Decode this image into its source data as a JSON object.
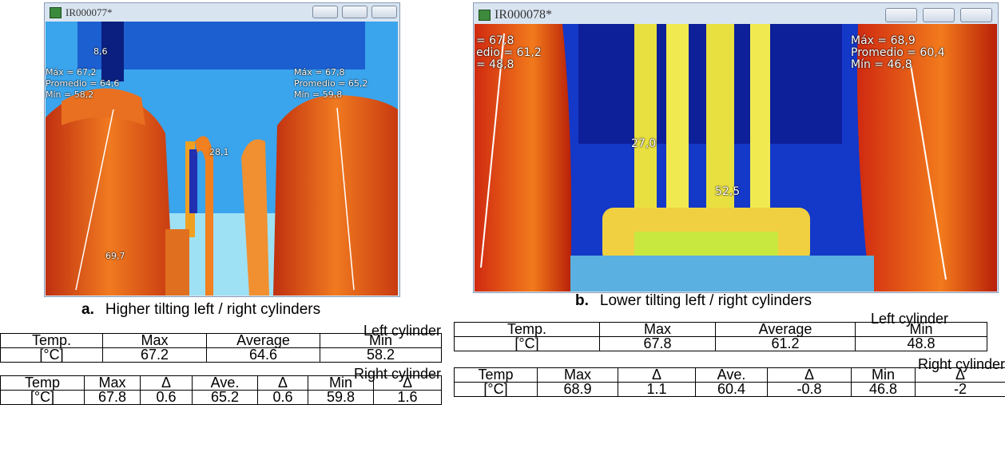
{
  "panels": [
    {
      "window_title": "IR000077*",
      "overlay_labels": [
        "8,6",
        "Máx = 67,2",
        "Promedio = 64,6",
        "Mín = 58,2",
        "Máx = 67,8",
        "Promedio = 65,2",
        "Mín = 59,8",
        "28,1",
        "69,7"
      ],
      "caption_letter": "a.",
      "caption": "Higher tilting left / right cylinders",
      "left_table": {
        "title": "Left cylinder",
        "rows": [
          [
            "Temp.",
            "Max",
            "Average",
            "Min"
          ],
          [
            "[°C]",
            "67.2",
            "64.6",
            "58.2"
          ]
        ]
      },
      "right_table": {
        "title": "Right cylinder",
        "rows": [
          [
            "Temp",
            "Max",
            "Δ",
            "Ave.",
            "Δ",
            "Min",
            "Δ"
          ],
          [
            "[°C]",
            "67.8",
            "0.6",
            "65.2",
            "0.6",
            "59.8",
            "1.6"
          ]
        ]
      }
    },
    {
      "window_title": "IR000078*",
      "overlay_labels": [
        "= 67,8",
        "edio = 61,2",
        "= 48,8",
        "Máx = 68,9",
        "Promedio = 60,4",
        "Mín = 46,8",
        "27,0",
        "52,5"
      ],
      "caption_letter": "b.",
      "caption": "Lower tilting left / right cylinders",
      "left_table": {
        "title": "Left cylinder",
        "rows": [
          [
            "Temp.",
            "Max",
            "Average",
            "Min"
          ],
          [
            "[°C]",
            "67.8",
            "61.2",
            "48.8"
          ]
        ]
      },
      "right_table": {
        "title": "Right cylinder",
        "rows": [
          [
            "Temp",
            "Max",
            "Δ",
            "Ave.",
            "Δ",
            "Min",
            "Δ"
          ],
          [
            "[°C]",
            "68.9",
            "1.1",
            "60.4",
            "-0.8",
            "46.8",
            "-2"
          ]
        ]
      }
    }
  ]
}
